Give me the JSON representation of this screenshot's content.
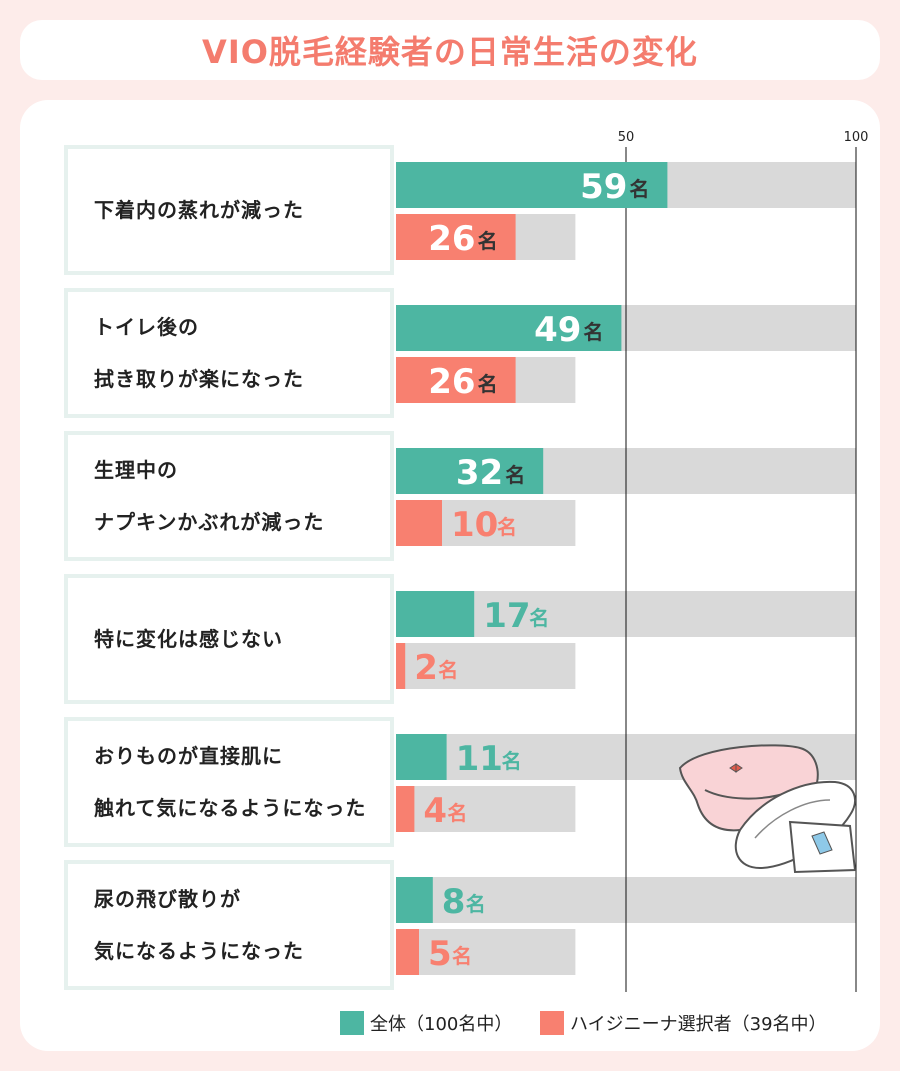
{
  "title": "VIO脱毛経験者の日常生活の変化",
  "colors": {
    "all": "#4db6a2",
    "hygienina": "#f88070",
    "track": "#d9d9d9",
    "title": "#f47c6e"
  },
  "chart_data": {
    "type": "bar",
    "orientation": "horizontal",
    "categories": [
      "下着内の蒸れが減った",
      "トイレ後の\n拭き取りが楽になった",
      "生理中の\nナプキンかぶれが減った",
      "特に変化は感じない",
      "おりものが直接肌に\n触れて気になるようになった",
      "尿の飛び散りが\n気になるようになった"
    ],
    "series": [
      {
        "name": "全体（100名中）",
        "values": [
          59,
          49,
          32,
          17,
          11,
          8
        ],
        "max": 100,
        "color": "#4db6a2"
      },
      {
        "name": "ハイジニーナ選択者（39名中）",
        "values": [
          26,
          26,
          10,
          2,
          4,
          5
        ],
        "max": 39,
        "color": "#f88070"
      }
    ],
    "unit": "名",
    "ticks": [
      "50",
      "100"
    ],
    "xlim": [
      0,
      100
    ],
    "legend_position": "bottom-right"
  },
  "illustration": "underwear-and-pads"
}
